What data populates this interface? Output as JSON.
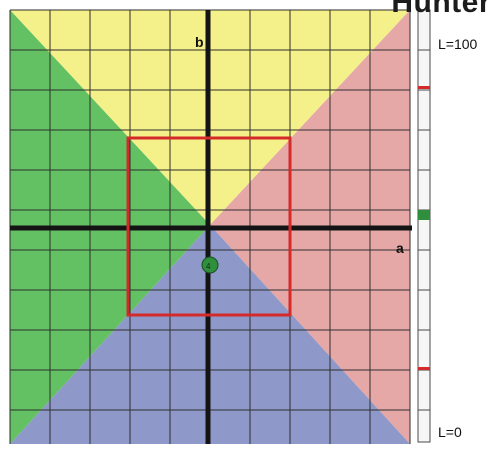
{
  "title_fragment": "Hunter",
  "axis_labels": {
    "b": "b",
    "a": "a"
  },
  "lightness_scale": {
    "top_label": "L=100",
    "bottom_label": "L=0"
  },
  "quadrant_colors": {
    "top": "#f4f08a",
    "right": "#e6a7a7",
    "bottom": "#8f99c9",
    "left": "#63c063"
  },
  "grid_color": "#2e2e2e",
  "selection_box_color": "#d42a2a",
  "marker_color": "#2f8f3c",
  "scale_marker_color": "#d42a2a"
}
